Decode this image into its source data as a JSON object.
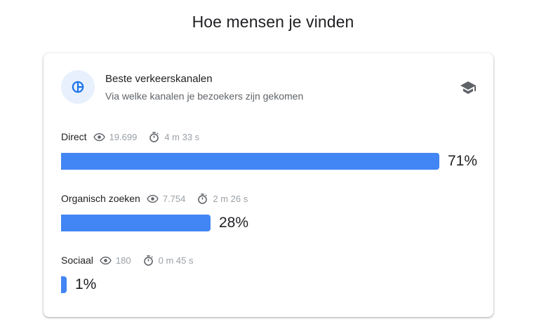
{
  "page": {
    "title": "Hoe mensen je vinden"
  },
  "card": {
    "title": "Beste verkeerskanalen",
    "subtitle": "Via welke kanalen je bezoekers zijn gekomen",
    "icon": "pie-chart-icon",
    "action_icon": "graduation-cap-icon"
  },
  "colors": {
    "bar": "#4285f4",
    "icon_circle_bg": "#e8f0fe",
    "icon_accent": "#1a73e8",
    "muted_text": "#9aa0a6"
  },
  "channels": [
    {
      "name": "Direct",
      "views": "19.699",
      "duration": "4 m 33 s",
      "percent_label": "71%",
      "share": 0.71
    },
    {
      "name": "Organisch zoeken",
      "views": "7.754",
      "duration": "2 m 26 s",
      "percent_label": "28%",
      "share": 0.28
    },
    {
      "name": "Sociaal",
      "views": "180",
      "duration": "0 m 45 s",
      "percent_label": "1%",
      "share": 0.01
    }
  ]
}
